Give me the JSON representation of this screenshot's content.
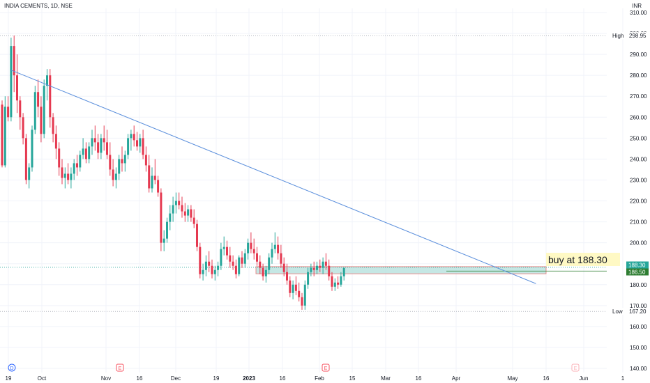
{
  "header": {
    "symbol": "INDIA CEMENTS, 1D, NSE",
    "currency": "INR"
  },
  "colors": {
    "up": "#26a69a",
    "down": "#e53950",
    "trendline": "#5b8fdc",
    "zone_fill": "#b2dfdb",
    "zone_border": "#e57373",
    "grid": "#f0f3fa",
    "high_low_line": "#b2b5be",
    "buy_label_bg": "#fff9c4",
    "price_tag_up": "#26a69a",
    "price_tag_level": "#2e7d32",
    "axis_text": "#131722",
    "event_marker": "#f7525f",
    "dividend_marker": "#2962ff"
  },
  "chart_data": {
    "type": "candlestick",
    "title": "INDIA CEMENTS, 1D, NSE",
    "ylabel": "INR",
    "ylim": [
      138,
      312
    ],
    "grid": true,
    "y_ticks": [
      140,
      150,
      160,
      170,
      180,
      190,
      200,
      210,
      220,
      230,
      240,
      250,
      260,
      270,
      280,
      290,
      300,
      310
    ],
    "y_tick_labels": [
      "140.00",
      "150.00",
      "160.00",
      "170.00",
      "180.00",
      "190.00",
      "200.00",
      "210.00",
      "220.00",
      "230.00",
      "240.00",
      "250.00",
      "260.00",
      "270.00",
      "280.00",
      "290.00",
      "300.00",
      "310.00"
    ],
    "x_ticks": [
      "19",
      "Oct",
      "Nov",
      "16",
      "Dec",
      "19",
      "2023",
      "16",
      "Feb",
      "15",
      "Mar",
      "16",
      "Apr",
      "May",
      "16",
      "Jun",
      "1"
    ],
    "x_tick_bold": [
      "2023"
    ],
    "high": {
      "label": "High",
      "value": "298.95"
    },
    "low": {
      "label": "Low",
      "value": "167.20"
    },
    "price_tags": [
      {
        "value": "188.30",
        "role": "last"
      },
      {
        "value": "186.50",
        "role": "level"
      }
    ],
    "annotation": "buy at 188.30",
    "zone": {
      "from": 185.2,
      "to": 188.6
    },
    "trendline": {
      "from": {
        "x": 3,
        "y": 282.5
      },
      "to": {
        "x": 178,
        "y": 180.5
      }
    },
    "events": [
      {
        "x": 0,
        "type": "dividend",
        "label": "D"
      },
      {
        "x": 34,
        "type": "earnings",
        "label": "E"
      },
      {
        "x": 101,
        "type": "earnings",
        "label": "E"
      },
      {
        "x": 181,
        "type": "earnings-future",
        "label": "E"
      }
    ],
    "candles": [
      [
        266,
        268,
        236,
        237
      ],
      [
        237,
        270,
        236,
        265
      ],
      [
        265,
        270,
        258,
        260
      ],
      [
        260,
        298,
        258,
        294
      ],
      [
        294,
        299,
        272,
        280
      ],
      [
        280,
        290,
        262,
        268
      ],
      [
        268,
        270,
        254,
        260
      ],
      [
        260,
        262,
        247,
        250
      ],
      [
        250,
        252,
        228,
        230
      ],
      [
        230,
        238,
        226,
        236
      ],
      [
        236,
        256,
        234,
        254
      ],
      [
        254,
        275,
        252,
        272
      ],
      [
        272,
        278,
        260,
        265
      ],
      [
        265,
        270,
        248,
        252
      ],
      [
        252,
        278,
        250,
        275
      ],
      [
        275,
        283,
        268,
        280
      ],
      [
        280,
        283,
        255,
        260
      ],
      [
        260,
        262,
        248,
        252
      ],
      [
        252,
        256,
        240,
        245
      ],
      [
        245,
        248,
        232,
        236
      ],
      [
        236,
        240,
        228,
        231
      ],
      [
        231,
        236,
        226,
        233
      ],
      [
        233,
        238,
        228,
        230
      ],
      [
        230,
        236,
        226,
        233
      ],
      [
        233,
        240,
        230,
        238
      ],
      [
        238,
        242,
        232,
        236
      ],
      [
        236,
        244,
        234,
        242
      ],
      [
        242,
        250,
        240,
        245
      ],
      [
        245,
        248,
        238,
        240
      ],
      [
        240,
        248,
        238,
        246
      ],
      [
        246,
        254,
        242,
        250
      ],
      [
        250,
        256,
        244,
        248
      ],
      [
        248,
        252,
        240,
        243
      ],
      [
        243,
        252,
        240,
        250
      ],
      [
        250,
        256,
        244,
        248
      ],
      [
        248,
        254,
        240,
        242
      ],
      [
        242,
        248,
        232,
        235
      ],
      [
        235,
        240,
        227,
        230
      ],
      [
        230,
        236,
        226,
        233
      ],
      [
        233,
        242,
        230,
        240
      ],
      [
        240,
        246,
        234,
        238
      ],
      [
        238,
        244,
        234,
        242
      ],
      [
        242,
        252,
        240,
        250
      ],
      [
        250,
        254,
        244,
        252
      ],
      [
        252,
        256,
        246,
        249
      ],
      [
        249,
        253,
        244,
        246
      ],
      [
        246,
        252,
        243,
        250
      ],
      [
        250,
        254,
        240,
        242
      ],
      [
        242,
        246,
        234,
        237
      ],
      [
        237,
        242,
        224,
        226
      ],
      [
        226,
        236,
        224,
        232
      ],
      [
        232,
        240,
        228,
        230
      ],
      [
        230,
        232,
        222,
        224
      ],
      [
        224,
        226,
        196,
        200
      ],
      [
        200,
        206,
        196,
        202
      ],
      [
        202,
        212,
        200,
        210
      ],
      [
        210,
        218,
        206,
        214
      ],
      [
        214,
        222,
        210,
        218
      ],
      [
        218,
        224,
        214,
        220
      ],
      [
        220,
        224,
        216,
        218
      ],
      [
        218,
        222,
        212,
        215
      ],
      [
        215,
        219,
        210,
        213
      ],
      [
        213,
        218,
        210,
        216
      ],
      [
        216,
        218,
        210,
        212
      ],
      [
        212,
        216,
        207,
        209
      ],
      [
        209,
        211,
        196,
        198
      ],
      [
        198,
        200,
        183,
        185
      ],
      [
        185,
        190,
        182,
        187
      ],
      [
        187,
        194,
        184,
        191
      ],
      [
        191,
        196,
        186,
        189
      ],
      [
        189,
        192,
        183,
        185
      ],
      [
        185,
        189,
        182,
        187
      ],
      [
        187,
        191,
        184,
        189
      ],
      [
        189,
        200,
        187,
        197
      ],
      [
        197,
        203,
        194,
        198
      ],
      [
        198,
        201,
        192,
        194
      ],
      [
        194,
        198,
        188,
        191
      ],
      [
        191,
        194,
        187,
        189
      ],
      [
        189,
        192,
        183,
        185
      ],
      [
        185,
        194,
        184,
        193
      ],
      [
        193,
        196,
        188,
        190
      ],
      [
        190,
        197,
        188,
        195
      ],
      [
        195,
        202,
        192,
        200
      ],
      [
        200,
        205,
        195,
        197
      ],
      [
        197,
        202,
        192,
        195
      ],
      [
        195,
        198,
        189,
        191
      ],
      [
        191,
        194,
        185,
        188
      ],
      [
        188,
        190,
        182,
        184
      ],
      [
        184,
        189,
        181,
        187
      ],
      [
        187,
        195,
        185,
        193
      ],
      [
        193,
        200,
        190,
        197
      ],
      [
        197,
        205,
        195,
        199
      ],
      [
        199,
        203,
        192,
        195
      ],
      [
        195,
        199,
        188,
        190
      ],
      [
        190,
        193,
        184,
        186
      ],
      [
        186,
        190,
        180,
        182
      ],
      [
        182,
        184,
        174,
        176
      ],
      [
        176,
        182,
        173,
        180
      ],
      [
        180,
        184,
        175,
        177
      ],
      [
        177,
        181,
        172,
        174
      ],
      [
        174,
        176,
        168,
        170
      ],
      [
        170,
        182,
        168,
        180
      ],
      [
        180,
        188,
        178,
        186
      ],
      [
        186,
        190,
        184,
        188
      ],
      [
        188,
        191,
        184,
        187
      ],
      [
        187,
        191,
        185,
        189
      ],
      [
        189,
        192,
        186,
        188
      ],
      [
        188,
        193,
        185,
        191
      ],
      [
        191,
        195,
        187,
        189
      ],
      [
        189,
        192,
        182,
        184
      ],
      [
        184,
        186,
        177,
        179
      ],
      [
        179,
        183,
        177,
        181
      ],
      [
        181,
        184,
        178,
        180
      ],
      [
        180,
        186,
        179,
        184
      ],
      [
        184,
        188,
        182,
        188
      ]
    ]
  }
}
